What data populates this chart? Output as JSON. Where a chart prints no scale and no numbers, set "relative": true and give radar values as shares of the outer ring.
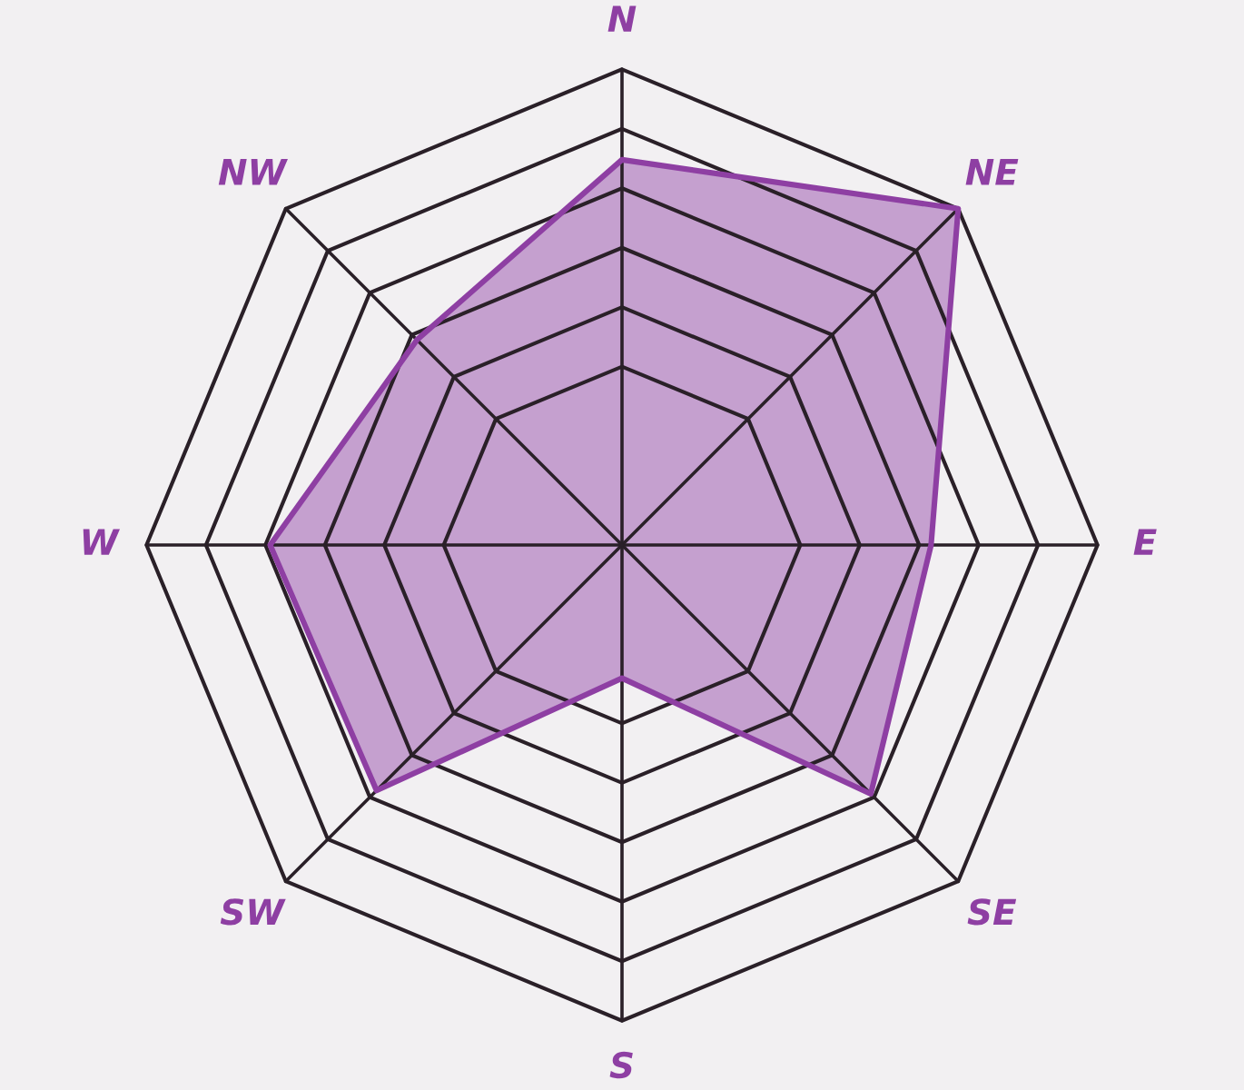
{
  "chart_data": {
    "type": "radar",
    "relative": true,
    "grid": true,
    "categories": [
      "N",
      "NE",
      "E",
      "SE",
      "S",
      "SW",
      "W",
      "NW"
    ],
    "series": [
      {
        "color": "#8e3fa3",
        "values": [
          0.81,
          1.0,
          0.65,
          0.74,
          0.28,
          0.73,
          0.74,
          0.61
        ]
      }
    ]
  }
}
